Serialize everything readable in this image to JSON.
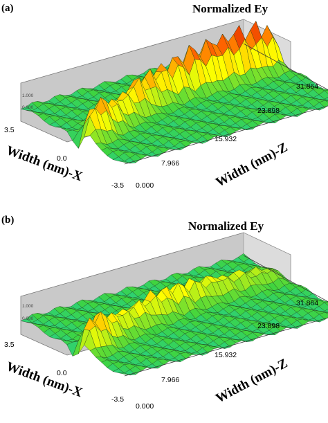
{
  "chart_data": [
    {
      "panel_label": "(a)",
      "type": "surface",
      "title": "Normalized Ey",
      "xlabel": "Width (nm)-X",
      "zlabel": "Width (nm)-Z",
      "x_ticks": [
        "3.5",
        "0.0",
        "-3.5"
      ],
      "z_ticks": [
        "0.000",
        "7.966",
        "15.932",
        "23.898",
        "31.864"
      ],
      "vertical_ticks": [
        "1.000",
        "0.000"
      ],
      "xlim": [
        -3.5,
        3.5
      ],
      "zlim": [
        0.0,
        31.864
      ],
      "colormap": [
        "#0000aa",
        "#00c8ff",
        "#3fd43f",
        "#ffff00",
        "#ff6600",
        "#cc0000"
      ],
      "profile": {
        "z_fraction": [
          0.0,
          0.08,
          0.16,
          0.24,
          0.32,
          0.4,
          0.48,
          0.56,
          0.64,
          0.72,
          0.8,
          0.88,
          0.96,
          1.0
        ],
        "peak_height": [
          0.55,
          0.85,
          0.6,
          0.55,
          0.7,
          0.7,
          0.75,
          0.85,
          0.9,
          0.95,
          1.0,
          1.0,
          0.95,
          0.2
        ],
        "center_x": [
          -0.8,
          -0.5,
          -0.2,
          0.2,
          0.5,
          0.8,
          1.0,
          1.1,
          1.1,
          1.1,
          1.1,
          1.1,
          1.1,
          1.1
        ],
        "dip": -0.35
      }
    },
    {
      "panel_label": "(b)",
      "type": "surface",
      "title": "Normalized Ey",
      "xlabel": "Width (nm)-X",
      "zlabel": "Width (nm)-Z",
      "x_ticks": [
        "3.5",
        "0.0",
        "-3.5"
      ],
      "z_ticks": [
        "0.000",
        "7.966",
        "15.932",
        "23.898",
        "31.864"
      ],
      "vertical_ticks": [
        "1.000",
        "0.000"
      ],
      "xlim": [
        -3.5,
        3.5
      ],
      "zlim": [
        0.0,
        31.864
      ],
      "colormap": [
        "#0000aa",
        "#00c8ff",
        "#3fd43f",
        "#ffff00",
        "#ff6600",
        "#cc0000"
      ],
      "profile": {
        "z_fraction": [
          0.0,
          0.08,
          0.16,
          0.24,
          0.32,
          0.4,
          0.48,
          0.56,
          0.64,
          0.72,
          0.8,
          0.88,
          0.96,
          1.0
        ],
        "peak_height": [
          0.55,
          0.8,
          0.55,
          0.45,
          0.45,
          0.55,
          0.55,
          0.5,
          0.45,
          0.4,
          0.35,
          0.3,
          0.25,
          0.1
        ],
        "center_x": [
          -0.6,
          -0.4,
          -0.1,
          0.2,
          0.4,
          0.6,
          0.8,
          0.9,
          1.0,
          1.0,
          1.0,
          1.0,
          1.0,
          1.0
        ],
        "dip": -0.35
      }
    }
  ]
}
